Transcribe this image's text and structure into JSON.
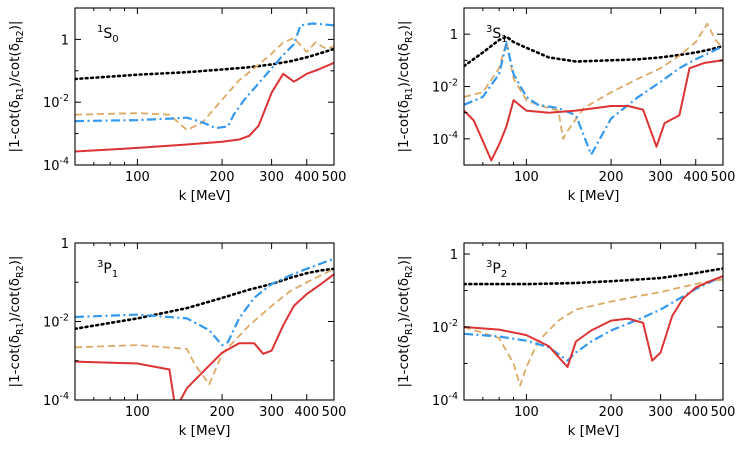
{
  "chart_data": [
    {
      "type": "line",
      "panel_label": {
        "sup": "1",
        "main": "S",
        "sub": "0"
      },
      "xlabel": "k [MeV]",
      "ylabel": {
        "prefix": "|1-cot(δ",
        "sub1": "R1",
        "middle": ")/cot(δ",
        "sub2": "R2",
        "suffix": ")|"
      },
      "x_scale": "log",
      "y_scale": "log",
      "xlim": [
        60,
        500
      ],
      "ylim": [
        0.0001,
        10
      ],
      "xticks": [
        100,
        200,
        300,
        400,
        500
      ],
      "xtick_labels": [
        "100",
        "200",
        "300",
        "400",
        "500"
      ],
      "yticks": [
        0.0001,
        0.01,
        1
      ],
      "ytick_labels": [
        {
          "base": "10",
          "exp": "-4"
        },
        {
          "base": "10",
          "exp": "-2"
        },
        {
          "base": "1",
          "exp": ""
        }
      ],
      "series": [
        {
          "style": "dotted",
          "color": "#000000",
          "x": [
            60,
            100,
            150,
            200,
            250,
            300,
            350,
            400,
            450,
            500
          ],
          "y": [
            0.055,
            0.075,
            0.09,
            0.11,
            0.13,
            0.16,
            0.2,
            0.27,
            0.37,
            0.5
          ]
        },
        {
          "style": "dashed",
          "color": "#ddaa66",
          "x": [
            60,
            100,
            130,
            150,
            170,
            200,
            230,
            260,
            300,
            330,
            360,
            400,
            430,
            470,
            500
          ],
          "y": [
            0.004,
            0.0045,
            0.004,
            0.0013,
            0.0022,
            0.012,
            0.05,
            0.12,
            0.35,
            0.8,
            1.1,
            0.4,
            0.8,
            0.5,
            0.6
          ]
        },
        {
          "style": "dashdot",
          "color": "#3399ee",
          "x": [
            60,
            100,
            130,
            150,
            170,
            190,
            210,
            220,
            240,
            270,
            300,
            330,
            360,
            380,
            420,
            460,
            500
          ],
          "y": [
            0.0025,
            0.0027,
            0.003,
            0.0032,
            0.0023,
            0.0015,
            0.0017,
            0.004,
            0.012,
            0.04,
            0.12,
            0.32,
            0.7,
            2.8,
            3.2,
            3.0,
            2.8
          ]
        },
        {
          "style": "solid",
          "color": "#dd3333",
          "x": [
            60,
            100,
            150,
            200,
            230,
            250,
            270,
            300,
            330,
            360,
            380,
            400,
            440,
            500
          ],
          "y": [
            0.00027,
            0.00035,
            0.00045,
            0.00055,
            0.00065,
            0.00085,
            0.0018,
            0.02,
            0.08,
            0.045,
            0.06,
            0.08,
            0.11,
            0.18
          ]
        }
      ]
    },
    {
      "type": "line",
      "panel_label": {
        "sup": "3",
        "main": "S",
        "sub": "1"
      },
      "xlabel": "k [MeV]",
      "ylabel": {
        "prefix": "|1-cot(δ",
        "sub1": "R1",
        "middle": ")/cot(δ",
        "sub2": "R2",
        "suffix": ")|"
      },
      "x_scale": "log",
      "y_scale": "log",
      "xlim": [
        60,
        500
      ],
      "ylim": [
        1e-05,
        10
      ],
      "xticks": [
        100,
        200,
        300,
        400,
        500
      ],
      "xtick_labels": [
        "100",
        "200",
        "300",
        "400",
        "500"
      ],
      "yticks": [
        0.0001,
        0.01,
        1
      ],
      "ytick_labels": [
        {
          "base": "10",
          "exp": "-4"
        },
        {
          "base": "10",
          "exp": "-2"
        },
        {
          "base": "1",
          "exp": ""
        }
      ],
      "series": [
        {
          "style": "dotted",
          "color": "#000000",
          "x": [
            60,
            70,
            80,
            85,
            90,
            100,
            120,
            150,
            200,
            250,
            300,
            350,
            400,
            450,
            500
          ],
          "y": [
            0.06,
            0.2,
            0.6,
            0.8,
            0.5,
            0.3,
            0.13,
            0.09,
            0.1,
            0.11,
            0.13,
            0.16,
            0.2,
            0.26,
            0.35
          ]
        },
        {
          "style": "dashed",
          "color": "#ddaa66",
          "x": [
            60,
            70,
            80,
            85,
            90,
            100,
            110,
            120,
            130,
            135,
            140,
            160,
            200,
            250,
            300,
            350,
            400,
            440,
            470,
            500
          ],
          "y": [
            0.004,
            0.006,
            0.05,
            0.5,
            0.02,
            0.003,
            0.002,
            0.0015,
            0.0012,
            0.0001,
            0.0002,
            0.0015,
            0.006,
            0.02,
            0.05,
            0.15,
            0.5,
            2.5,
            0.6,
            0.3
          ]
        },
        {
          "style": "dashdot",
          "color": "#3399ee",
          "x": [
            60,
            70,
            80,
            85,
            90,
            100,
            110,
            130,
            150,
            170,
            200,
            250,
            300,
            350,
            400,
            450,
            500
          ],
          "y": [
            0.002,
            0.004,
            0.03,
            0.45,
            0.03,
            0.004,
            0.002,
            0.0015,
            0.0008,
            2.5e-05,
            0.0006,
            0.004,
            0.015,
            0.05,
            0.11,
            0.2,
            0.35
          ]
        },
        {
          "style": "solid",
          "color": "#dd3333",
          "x": [
            60,
            65,
            75,
            80,
            85,
            90,
            100,
            120,
            150,
            200,
            230,
            260,
            290,
            310,
            350,
            380,
            430,
            500
          ],
          "y": [
            0.0012,
            0.0005,
            1.5e-05,
            6e-05,
            0.0003,
            0.003,
            0.0012,
            0.001,
            0.0012,
            0.0018,
            0.0018,
            0.0013,
            5e-05,
            0.0004,
            0.0008,
            0.05,
            0.08,
            0.1
          ]
        }
      ]
    },
    {
      "type": "line",
      "panel_label": {
        "sup": "3",
        "main": "P",
        "sub": "1"
      },
      "xlabel": "k [MeV]",
      "ylabel": {
        "prefix": "|1-cot(δ",
        "sub1": "R1",
        "middle": ")/cot(δ",
        "sub2": "R2",
        "suffix": ")|"
      },
      "x_scale": "log",
      "y_scale": "log",
      "xlim": [
        60,
        500
      ],
      "ylim": [
        0.0001,
        1
      ],
      "xticks": [
        100,
        200,
        300,
        400,
        500
      ],
      "xtick_labels": [
        "100",
        "200",
        "300",
        "400",
        "500"
      ],
      "yticks": [
        0.0001,
        0.01,
        1
      ],
      "ytick_labels": [
        {
          "base": "10",
          "exp": "-4"
        },
        {
          "base": "10",
          "exp": "-2"
        },
        {
          "base": "1",
          "exp": ""
        }
      ],
      "series": [
        {
          "style": "dotted",
          "color": "#000000",
          "x": [
            60,
            100,
            150,
            200,
            250,
            300,
            350,
            400,
            450,
            500
          ],
          "y": [
            0.0065,
            0.012,
            0.022,
            0.04,
            0.065,
            0.09,
            0.13,
            0.17,
            0.2,
            0.22
          ]
        },
        {
          "style": "dashed",
          "color": "#ddaa66",
          "x": [
            60,
            100,
            150,
            160,
            170,
            180,
            200,
            250,
            300,
            350,
            400,
            450,
            500
          ],
          "y": [
            0.0022,
            0.0025,
            0.002,
            0.0008,
            0.00045,
            0.00025,
            0.0015,
            0.008,
            0.025,
            0.06,
            0.1,
            0.15,
            0.22
          ]
        },
        {
          "style": "dashdot",
          "color": "#3399ee",
          "x": [
            60,
            100,
            150,
            180,
            200,
            210,
            230,
            260,
            300,
            350,
            400,
            450,
            500
          ],
          "y": [
            0.013,
            0.015,
            0.012,
            0.006,
            0.0025,
            0.003,
            0.012,
            0.04,
            0.09,
            0.15,
            0.22,
            0.3,
            0.4
          ]
        },
        {
          "style": "solid",
          "color": "#dd3333",
          "x": [
            60,
            100,
            130,
            135,
            140,
            150,
            170,
            200,
            230,
            260,
            280,
            300,
            330,
            360,
            400,
            450,
            500
          ],
          "y": [
            0.00095,
            0.00085,
            0.0006,
            0.0001,
            8e-05,
            0.0002,
            0.0005,
            0.0016,
            0.0028,
            0.0028,
            0.0015,
            0.0018,
            0.008,
            0.025,
            0.05,
            0.09,
            0.16
          ]
        }
      ]
    },
    {
      "type": "line",
      "panel_label": {
        "sup": "3",
        "main": "P",
        "sub": "2"
      },
      "xlabel": "k [MeV]",
      "ylabel": {
        "prefix": "|1-cot(δ",
        "sub1": "R1",
        "middle": ")/cot(δ",
        "sub2": "R2",
        "suffix": ")|"
      },
      "x_scale": "log",
      "y_scale": "log",
      "xlim": [
        60,
        500
      ],
      "ylim": [
        0.0001,
        2
      ],
      "xticks": [
        100,
        200,
        300,
        400,
        500
      ],
      "xtick_labels": [
        "100",
        "200",
        "300",
        "400",
        "500"
      ],
      "yticks": [
        0.0001,
        0.01,
        1
      ],
      "ytick_labels": [
        {
          "base": "10",
          "exp": "-4"
        },
        {
          "base": "10",
          "exp": "-2"
        },
        {
          "base": "1",
          "exp": ""
        }
      ],
      "series": [
        {
          "style": "dotted",
          "color": "#000000",
          "x": [
            60,
            100,
            150,
            200,
            250,
            300,
            350,
            400,
            450,
            500
          ],
          "y": [
            0.15,
            0.15,
            0.16,
            0.18,
            0.2,
            0.22,
            0.26,
            0.3,
            0.35,
            0.4
          ]
        },
        {
          "style": "dashed",
          "color": "#ddaa66",
          "x": [
            60,
            80,
            90,
            95,
            100,
            110,
            130,
            150,
            200,
            250,
            300,
            350,
            400,
            450,
            500
          ],
          "y": [
            0.01,
            0.005,
            0.001,
            0.00025,
            0.0008,
            0.004,
            0.015,
            0.03,
            0.05,
            0.07,
            0.09,
            0.12,
            0.15,
            0.18,
            0.2
          ]
        },
        {
          "style": "dashdot",
          "color": "#3399ee",
          "x": [
            60,
            80,
            100,
            120,
            140,
            150,
            170,
            200,
            250,
            300,
            350,
            400,
            450,
            500
          ],
          "y": [
            0.0065,
            0.0055,
            0.0042,
            0.0028,
            0.0012,
            0.002,
            0.004,
            0.008,
            0.016,
            0.03,
            0.06,
            0.11,
            0.17,
            0.25
          ]
        },
        {
          "style": "solid",
          "color": "#dd3333",
          "x": [
            60,
            80,
            100,
            120,
            140,
            150,
            170,
            200,
            230,
            260,
            280,
            300,
            330,
            360,
            400,
            450,
            500
          ],
          "y": [
            0.01,
            0.0085,
            0.006,
            0.003,
            0.0008,
            0.004,
            0.008,
            0.015,
            0.017,
            0.013,
            0.0012,
            0.002,
            0.02,
            0.06,
            0.12,
            0.18,
            0.25
          ]
        }
      ]
    }
  ]
}
